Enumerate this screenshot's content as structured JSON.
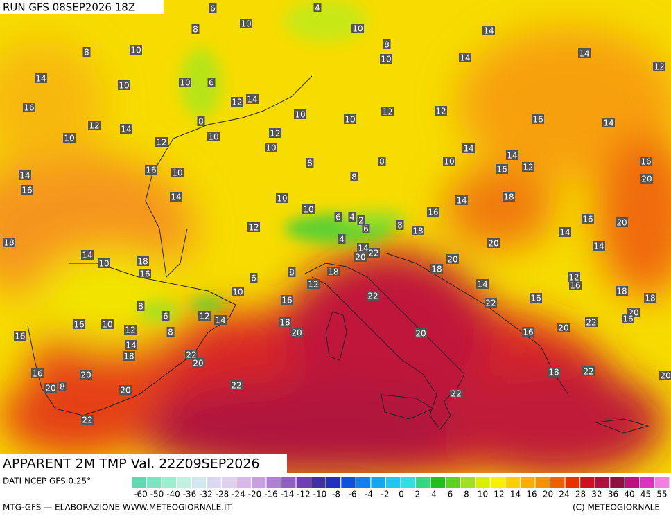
{
  "header": {
    "run": "RUN GFS 08SEP2026 18Z",
    "title": "APPARENT 2M TMP Val. 22Z09SEP2026"
  },
  "map_labels": [
    6,
    4,
    10,
    10,
    8,
    14,
    8,
    10,
    8,
    10,
    14,
    14,
    12,
    14,
    10,
    10,
    6,
    12,
    14,
    16,
    12,
    12,
    10,
    10,
    8,
    16,
    14,
    12,
    14,
    10,
    10,
    12,
    12,
    10,
    14,
    14,
    8,
    8,
    10,
    16,
    12,
    16,
    16,
    10,
    14,
    16,
    8,
    20,
    14,
    10,
    18,
    14,
    10,
    16,
    6,
    4,
    2,
    6,
    8,
    18,
    16,
    20,
    12,
    14,
    4,
    18,
    20,
    14,
    14,
    10,
    18,
    22,
    20,
    14,
    18,
    18,
    20,
    16,
    8,
    12,
    16,
    10,
    6,
    12,
    14,
    18,
    18,
    16,
    22,
    22,
    16,
    8,
    6,
    12,
    14,
    20,
    16,
    22,
    16,
    10,
    12,
    18,
    20,
    20,
    20,
    16,
    8,
    16,
    14,
    18,
    22,
    20,
    16,
    20,
    18,
    22,
    20,
    8,
    22,
    20,
    22,
    22,
    20
  ],
  "footer": {
    "source": "DATI NCEP GFS 0.25°",
    "credit": "MTG-GFS — ELABORAZIONE WWW.METEOGIORNALE.IT",
    "copyright": "(C) METEOGIORNALE"
  },
  "legend": {
    "labels": [
      -60,
      -50,
      -40,
      -36,
      -32,
      -28,
      -24,
      -20,
      -16,
      -14,
      -12,
      -10,
      -8,
      -6,
      -4,
      -2,
      0,
      2,
      4,
      6,
      8,
      10,
      12,
      14,
      16,
      20,
      24,
      28,
      32,
      36,
      40,
      45,
      55
    ],
    "colors": [
      "#5fd9b0",
      "#7de3c0",
      "#a0ecd0",
      "#c0f0e0",
      "#d0e8f0",
      "#d8d8f0",
      "#e0d0f0",
      "#d8b8e8",
      "#c8a0e0",
      "#b080d0",
      "#9060c0",
      "#7040b0",
      "#4030a0",
      "#2030c0",
      "#1050e0",
      "#1080f0",
      "#10a8f0",
      "#20c8f0",
      "#30e0e0",
      "#30d880",
      "#20c020",
      "#60d020",
      "#a0e020",
      "#d8f000",
      "#f8f000",
      "#f8d000",
      "#f8b000",
      "#f89000",
      "#f06000",
      "#e83000",
      "#d01020",
      "#b01040",
      "#901040",
      "#c01080",
      "#e030c0",
      "#f080e0"
    ]
  }
}
